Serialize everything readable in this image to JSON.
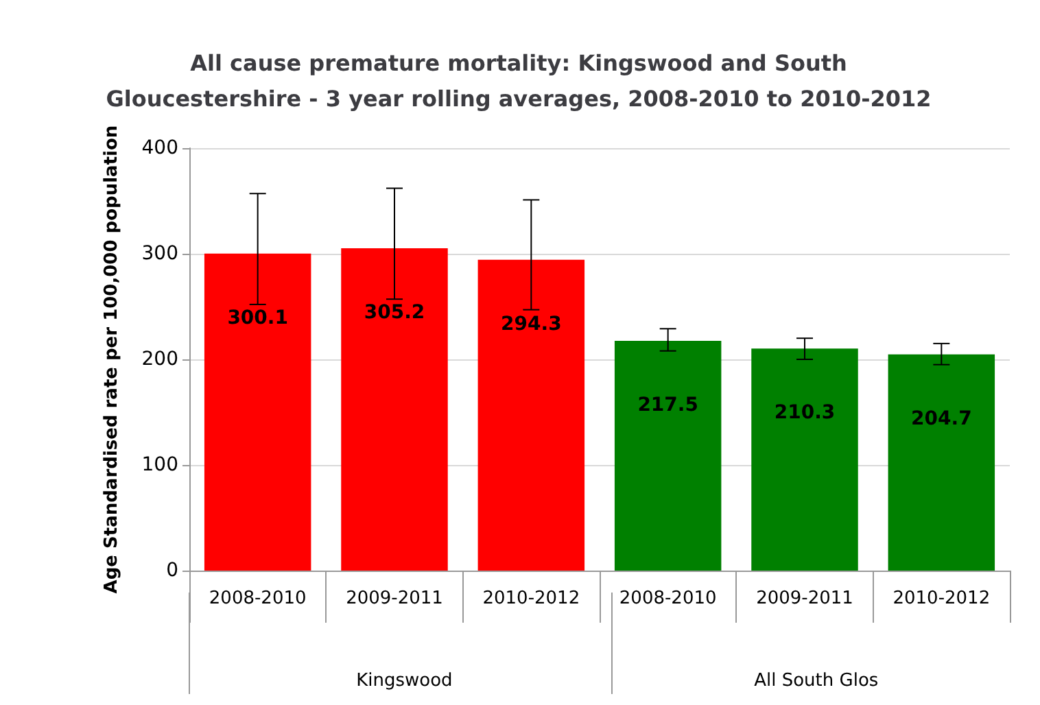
{
  "chart_data": {
    "type": "bar",
    "title": "All cause premature mortality: Kingswood and South\nGloucestershire - 3 year rolling averages, 2008-2010 to 2010-2012",
    "ylabel": "Age Standardised rate per 100,000 population",
    "categories": [
      "2008-2010",
      "2009-2011",
      "2010-2012",
      "2008-2010",
      "2009-2011",
      "2010-2012"
    ],
    "values": [
      300.1,
      305.2,
      294.3,
      217.5,
      210.3,
      204.7
    ],
    "colors": [
      "#ff0000",
      "#ff0000",
      "#ff0000",
      "#008000",
      "#008000",
      "#008000"
    ],
    "errors": [
      [
        252,
        357
      ],
      [
        257,
        362
      ],
      [
        247,
        351
      ],
      [
        208,
        229
      ],
      [
        200,
        220
      ],
      [
        195,
        215
      ]
    ],
    "annotations": [
      "Kingswood",
      "All South Glos"
    ],
    "ylim": [
      0,
      400
    ],
    "yticks": [
      0,
      100,
      200,
      300,
      400
    ],
    "grid": "y",
    "data_labels": true
  }
}
